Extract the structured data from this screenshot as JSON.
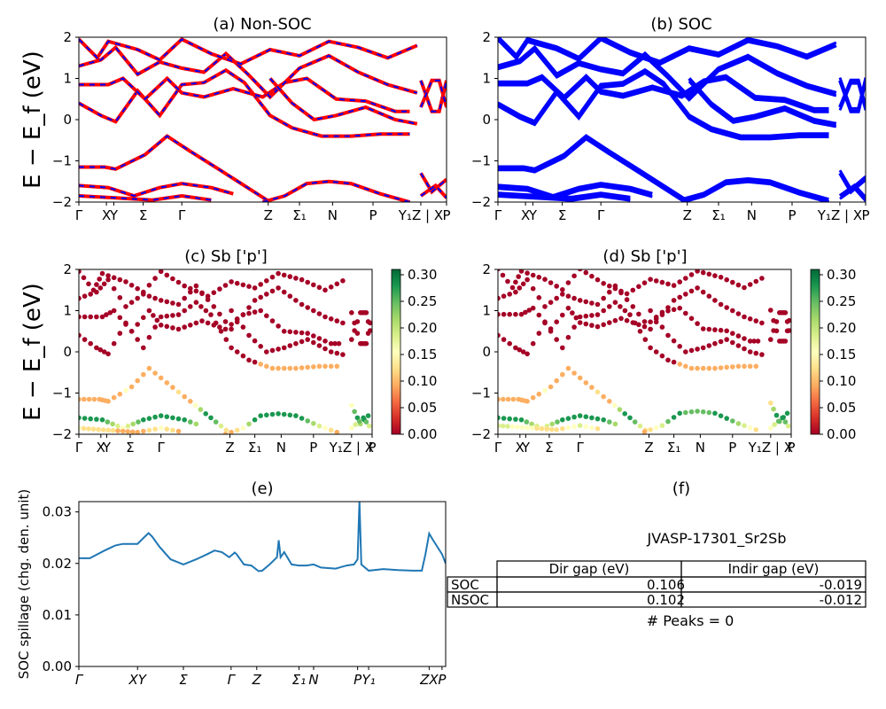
{
  "colors": {
    "red": "#ff0000",
    "blue": "#0000ff",
    "spill": "#1f77b4",
    "cmap": "RdYlGn"
  },
  "ylabel_energy": "E − E_f (eV)",
  "ylabel_spillage": "SOC spillage (chg. den. unit)",
  "panels": {
    "a": {
      "title": "(a) Non-SOC"
    },
    "b": {
      "title": "(b) SOC"
    },
    "c": {
      "title": "(c)  Sb ['p']"
    },
    "d": {
      "title": "(d) Sb ['p']"
    },
    "e": {
      "title": "(e)"
    },
    "f": {
      "title": "(f)"
    }
  },
  "table": {
    "title": "JVASP-17301_Sr2Sb",
    "columns": [
      "Dir gap (eV)",
      "Indir gap (eV)"
    ],
    "rows": [
      {
        "label": "SOC",
        "dir": "0.106",
        "indir": "-0.019"
      },
      {
        "label": "NSOC",
        "dir": "0.102",
        "indir": "-0.012"
      }
    ],
    "peaks": "# Peaks = 0"
  },
  "chart_data": [
    {
      "type": "line",
      "title": "(a) Non-SOC",
      "ylabel": "E − E_f (eV)",
      "ylim": [
        -2,
        2
      ],
      "yticks": [
        -2,
        -1,
        0,
        1,
        2
      ],
      "xticks": [
        {
          "label": "Γ",
          "x": 0
        },
        {
          "label": "X",
          "x": 0.075
        },
        {
          "label": "Y",
          "x": 0.095
        },
        {
          "label": "Σ",
          "x": 0.175
        },
        {
          "label": "Γ",
          "x": 0.28
        },
        {
          "label": "Z",
          "x": 0.515
        },
        {
          "label": "Σ₁",
          "x": 0.6
        },
        {
          "label": "N",
          "x": 0.69
        },
        {
          "label": "P",
          "x": 0.8
        },
        {
          "label": "Y₁Z | X",
          "x": 0.93
        },
        {
          "label": "P",
          "x": 1.0
        }
      ],
      "series": [
        {
          "name": "",
          "color": "#ff0000",
          "style": "solid",
          "bands": "nonsoc"
        },
        {
          "name": "",
          "color": "#0000ff",
          "style": "dashed",
          "bands": "nonsoc"
        }
      ]
    },
    {
      "type": "line",
      "title": "(b) SOC",
      "ylabel": "",
      "ylim": [
        -2,
        2
      ],
      "yticks": [
        -2,
        -1,
        0,
        1,
        2
      ],
      "series": [
        {
          "name": "",
          "color": "#0000ff",
          "bands": "soc"
        }
      ]
    },
    {
      "type": "scatter",
      "title": "(c)  Sb ['p']",
      "ylabel": "E − E_f (eV)",
      "ylim": [
        -2,
        2
      ],
      "colorbar": {
        "min": 0.0,
        "max": 0.31,
        "ticks": [
          "0.00",
          "0.05",
          "0.10",
          "0.15",
          "0.20",
          "0.25",
          "0.30"
        ]
      }
    },
    {
      "type": "scatter",
      "title": "(d) Sb ['p']",
      "ylabel": "",
      "ylim": [
        -2,
        2
      ],
      "colorbar": {
        "min": 0.0,
        "max": 0.31,
        "ticks": [
          "0.00",
          "0.05",
          "0.10",
          "0.15",
          "0.20",
          "0.25",
          "0.30"
        ]
      }
    },
    {
      "type": "line",
      "title": "(e)",
      "ylabel": "SOC spillage (chg. den. unit)",
      "ylim": [
        0,
        0.032
      ],
      "yticks": [
        "0.00",
        "0.01",
        "0.02",
        "0.03"
      ],
      "xticks": [
        {
          "label": "Γ",
          "x": 0
        },
        {
          "label": "XY",
          "x": 0.16
        },
        {
          "label": "Σ",
          "x": 0.285
        },
        {
          "label": "Γ",
          "x": 0.415
        },
        {
          "label": "Z",
          "x": 0.485
        },
        {
          "label": "Σ₁",
          "x": 0.6
        },
        {
          "label": "N",
          "x": 0.64
        },
        {
          "label": "P",
          "x": 0.76
        },
        {
          "label": "Y₁",
          "x": 0.79
        },
        {
          "label": "ZX",
          "x": 0.955
        },
        {
          "label": "P",
          "x": 0.99
        }
      ],
      "x": [
        0,
        0.03,
        0.07,
        0.1,
        0.12,
        0.16,
        0.18,
        0.19,
        0.2,
        0.22,
        0.25,
        0.285,
        0.32,
        0.35,
        0.37,
        0.39,
        0.41,
        0.42,
        0.425,
        0.43,
        0.45,
        0.47,
        0.49,
        0.5,
        0.52,
        0.54,
        0.545,
        0.55,
        0.56,
        0.58,
        0.6,
        0.62,
        0.64,
        0.66,
        0.7,
        0.73,
        0.75,
        0.76,
        0.765,
        0.77,
        0.79,
        0.83,
        0.87,
        0.91,
        0.935,
        0.945,
        0.955,
        0.965,
        0.99,
        1.0
      ],
      "y": [
        0.021,
        0.021,
        0.0225,
        0.0235,
        0.0238,
        0.0238,
        0.0252,
        0.0259,
        0.0252,
        0.0232,
        0.0208,
        0.0198,
        0.0208,
        0.0218,
        0.0225,
        0.0222,
        0.0212,
        0.0218,
        0.0221,
        0.0218,
        0.0198,
        0.0196,
        0.0185,
        0.0186,
        0.0198,
        0.0212,
        0.0245,
        0.0212,
        0.0222,
        0.0198,
        0.0196,
        0.0196,
        0.0198,
        0.0192,
        0.019,
        0.0196,
        0.0198,
        0.0208,
        0.0321,
        0.0198,
        0.0186,
        0.0189,
        0.0187,
        0.0186,
        0.0186,
        0.0218,
        0.0258,
        0.0246,
        0.0218,
        0.02
      ]
    }
  ]
}
